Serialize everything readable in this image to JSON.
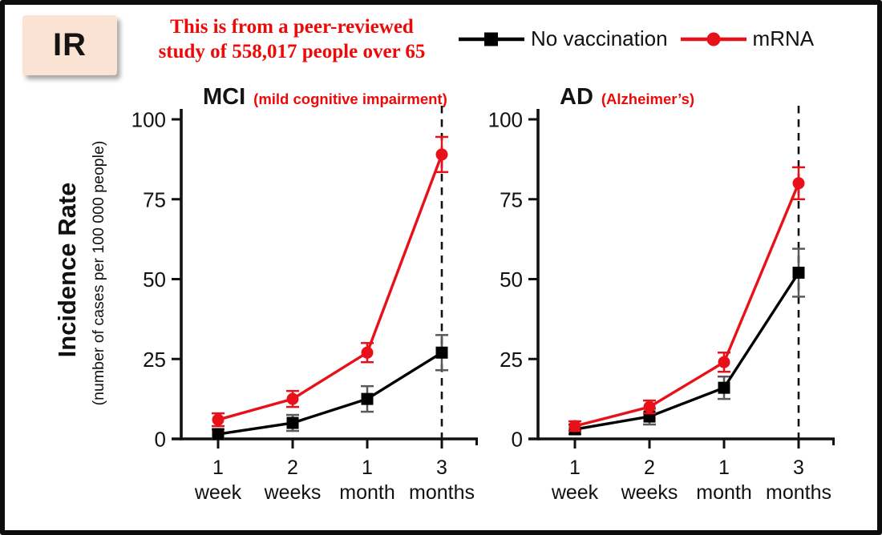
{
  "badge": {
    "label": "IR",
    "bg": "#fbe3d4"
  },
  "annotation": {
    "line1": "This is from a peer-reviewed",
    "line2": "study of 558,017 people over 65",
    "color": "#ee0909"
  },
  "legend": {
    "position": "top",
    "items": [
      {
        "label": "No vaccination",
        "color": "#000000",
        "marker": "square"
      },
      {
        "label": "mRNA",
        "color": "#e8111a",
        "marker": "circle"
      }
    ]
  },
  "y_axis_label": {
    "title": "Incidence Rate",
    "subtitle": "(number of cases per 100 000 people)"
  },
  "chart_data": [
    {
      "type": "line",
      "title": "MCI",
      "subtitle": "(mild cognitive impairment)",
      "categories": [
        "1 week",
        "2 weeks",
        "1 month",
        "3 months"
      ],
      "series": [
        {
          "name": "No vaccination",
          "color": "#000000",
          "error_color": "#5a5a5a",
          "marker": "square",
          "values": [
            1.5,
            5,
            12.5,
            27
          ],
          "errors": [
            1.5,
            2.5,
            4,
            5.5
          ]
        },
        {
          "name": "mRNA",
          "color": "#e8111a",
          "error_color": "#e8111a",
          "marker": "circle",
          "values": [
            6,
            12.5,
            27,
            89
          ],
          "errors": [
            2,
            2.5,
            3,
            5.5
          ]
        }
      ],
      "ylabel": "Incidence Rate (number of cases per 100 000 people)",
      "ylim": [
        0,
        100
      ],
      "yticks": [
        0,
        25,
        50,
        75,
        100
      ],
      "grid": false,
      "dashed_vline_at": "3 months"
    },
    {
      "type": "line",
      "title": "AD",
      "subtitle": "(Alzheimer’s)",
      "categories": [
        "1 week",
        "2 weeks",
        "1 month",
        "3 months"
      ],
      "series": [
        {
          "name": "No vaccination",
          "color": "#000000",
          "error_color": "#5a5a5a",
          "marker": "square",
          "values": [
            3,
            7,
            16,
            52
          ],
          "errors": [
            1.5,
            2.5,
            3.5,
            7.5
          ]
        },
        {
          "name": "mRNA",
          "color": "#e8111a",
          "error_color": "#e8111a",
          "marker": "circle",
          "values": [
            4,
            10,
            24,
            80
          ],
          "errors": [
            1.5,
            2,
            3,
            5
          ]
        }
      ],
      "ylabel": "Incidence Rate (number of cases per 100 000 people)",
      "ylim": [
        0,
        100
      ],
      "yticks": [
        0,
        25,
        50,
        75,
        100
      ],
      "grid": false,
      "dashed_vline_at": "3 months"
    }
  ]
}
